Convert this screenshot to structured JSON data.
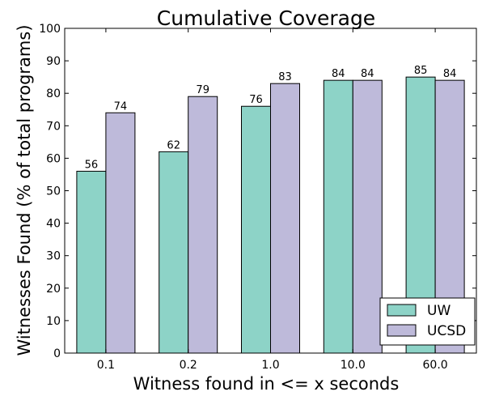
{
  "chart_data": {
    "type": "bar",
    "title": "Cumulative Coverage",
    "xlabel": "Witness found in <= x seconds",
    "ylabel": "Witnesses Found (% of total programs)",
    "categories": [
      "0.1",
      "0.2",
      "1.0",
      "10.0",
      "60.0"
    ],
    "series": [
      {
        "name": "UW",
        "values": [
          56,
          62,
          76,
          84,
          85
        ],
        "color": "#8dd3c7"
      },
      {
        "name": "UCSD",
        "values": [
          74,
          79,
          83,
          84,
          84
        ],
        "color": "#bebada"
      }
    ],
    "ylim": [
      0,
      100
    ],
    "yticks": [
      0,
      10,
      20,
      30,
      40,
      50,
      60,
      70,
      80,
      90,
      100
    ],
    "grid": false,
    "legend_position": "bottom-right",
    "data_labels": true
  }
}
